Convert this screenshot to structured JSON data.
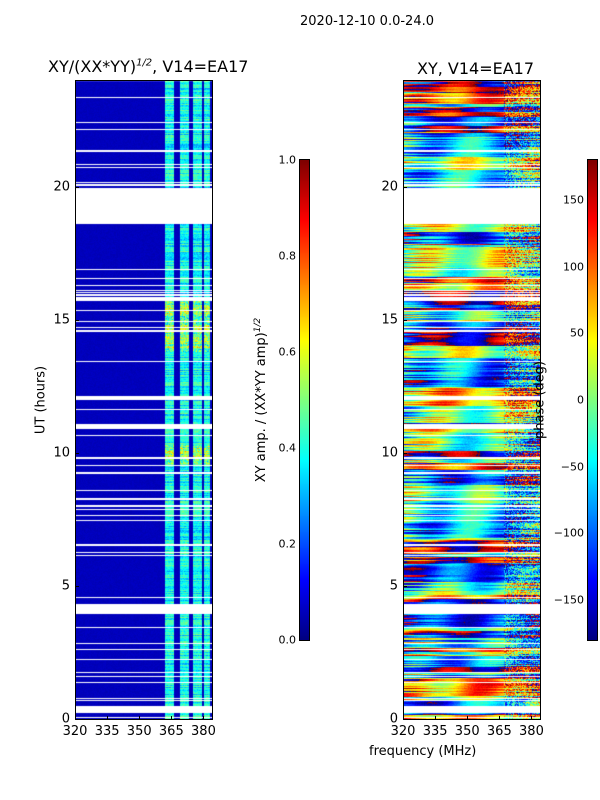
{
  "suptitle": "2020-12-10 0.0-24.0",
  "chart_data": [
    {
      "type": "heatmap",
      "title": "XY/(XX*YY)^{1/2}, V14=EA17",
      "title_main": "XY/(XX*YY)",
      "title_sup": "1/2",
      "title_suffix": ", V14=EA17",
      "xlabel": "",
      "ylabel": "UT (hours)",
      "xlim": [
        320,
        384
      ],
      "ylim": [
        0,
        24
      ],
      "xticks": [
        320,
        335,
        350,
        365,
        380
      ],
      "yticks": [
        0,
        5,
        10,
        15,
        20
      ],
      "colormap": "jet",
      "colorbar": {
        "label_main": "XY amp. / (XX*YY amp)",
        "label_sup": "1/2",
        "range": [
          0,
          1
        ],
        "ticks": [
          "0.0",
          "0.2",
          "0.4",
          "0.6",
          "0.8",
          "1.0"
        ]
      },
      "background_level": 0.05,
      "active_channels_mhz": [
        [
          362,
          366
        ],
        [
          369,
          373
        ],
        [
          375,
          379
        ],
        [
          380,
          383
        ]
      ],
      "active_level_range": [
        0.25,
        0.6
      ],
      "high_level_intervals_h": [
        [
          13.8,
          15.8
        ],
        [
          9.6,
          10.3
        ]
      ]
    },
    {
      "type": "heatmap",
      "title": "XY, V14=EA17",
      "xlabel": "frequency (MHz)",
      "ylabel": "phase (deg)",
      "xlim": [
        320,
        384
      ],
      "ylim": [
        0,
        24
      ],
      "xticks": [
        320,
        335,
        350,
        365,
        380
      ],
      "yticks": [
        0,
        5,
        10,
        15,
        20
      ],
      "colormap": "jet",
      "colorbar": {
        "range": [
          -180,
          180
        ],
        "ticks": [
          "−150",
          "−100",
          "−50",
          "0",
          "50",
          "100",
          "150"
        ],
        "tick_values": [
          -150,
          -100,
          -50,
          0,
          50,
          100,
          150
        ]
      }
    }
  ],
  "flagged_intervals_h": [
    [
      0.3,
      0.5
    ],
    [
      3.98,
      4.35
    ],
    [
      6.5,
      6.6
    ],
    [
      10.9,
      11.1
    ],
    [
      12.0,
      12.15
    ],
    [
      15.7,
      15.85
    ],
    [
      18.65,
      19.95
    ],
    [
      21.3,
      21.4
    ]
  ]
}
